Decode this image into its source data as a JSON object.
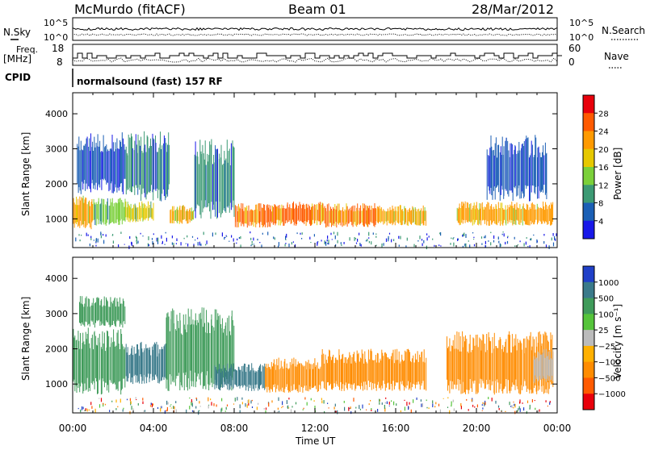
{
  "header": {
    "station": "McMurdo (fitACF)",
    "beam": "Beam 01",
    "date": "28/Mar/2012"
  },
  "strips": {
    "nsky_label": "N.Sky",
    "nsearch_label": "N.Search",
    "noise_ticks": [
      "10^5",
      "10^0"
    ],
    "freq_label_line1": "Freq.",
    "freq_label_line2": "[MHz]",
    "freq_ticks": [
      "18",
      "8"
    ],
    "nave_label": "Nave",
    "nave_ticks": [
      "60",
      "0"
    ],
    "cpid_label": "CPID",
    "cpid_text": "normalsound (fast) 157 RF"
  },
  "axes": {
    "ylabel": "Slant Range [km]",
    "xlabel": "Time UT",
    "xticks": [
      "00:00",
      "04:00",
      "08:00",
      "12:00",
      "16:00",
      "20:00",
      "00:00"
    ],
    "xrange_hours": [
      0,
      24
    ],
    "yrange_km": [
      180,
      4600
    ]
  },
  "power_colorbar": {
    "label": "Power [dB]",
    "ticks": [
      "28",
      "24",
      "20",
      "16",
      "12",
      "8",
      "4"
    ],
    "colors": [
      "#e8000b",
      "#ff5a00",
      "#ff9a00",
      "#e6c800",
      "#7bd03a",
      "#3c9a74",
      "#1b5fb5",
      "#1818e8"
    ]
  },
  "velocity_colorbar": {
    "label": "Velocity [m s⁻¹]",
    "ticks": [
      "1000",
      "500",
      "100",
      "25",
      "−25",
      "−100",
      "−500",
      "−1000"
    ],
    "colors": [
      "#2040c8",
      "#3a7a8a",
      "#3f9b5a",
      "#55c43a",
      "#bbbbbb",
      "#ffb000",
      "#ff8c00",
      "#ff5a00",
      "#e8000b"
    ]
  },
  "chart_data": {
    "type": "heatmap",
    "x_unit": "hours UT",
    "y_unit": "km",
    "ylim": [
      180,
      4600
    ],
    "xlim": [
      0,
      24
    ],
    "panels": [
      {
        "name": "power",
        "regions": [
          {
            "x": [
              0.0,
              1.0
            ],
            "y": [
              700,
              1700
            ],
            "value": 22
          },
          {
            "x": [
              0.2,
              2.6
            ],
            "y": [
              1700,
              3500
            ],
            "value": 6
          },
          {
            "x": [
              1.0,
              2.6
            ],
            "y": [
              800,
              1600
            ],
            "value": 12
          },
          {
            "x": [
              2.6,
              4.0
            ],
            "y": [
              900,
              1500
            ],
            "value": 18
          },
          {
            "x": [
              2.6,
              4.8
            ],
            "y": [
              1500,
              3500
            ],
            "value": 8
          },
          {
            "x": [
              4.8,
              6.0
            ],
            "y": [
              850,
              1400
            ],
            "value": 20
          },
          {
            "x": [
              6.0,
              8.0
            ],
            "y": [
              1000,
              3300
            ],
            "value": 9
          },
          {
            "x": [
              8.0,
              10.0
            ],
            "y": [
              750,
              1450
            ],
            "value": 26
          },
          {
            "x": [
              10.0,
              12.5
            ],
            "y": [
              800,
              1500
            ],
            "value": 27
          },
          {
            "x": [
              12.5,
              15.0
            ],
            "y": [
              750,
              1450
            ],
            "value": 25
          },
          {
            "x": [
              15.0,
              17.5
            ],
            "y": [
              800,
              1400
            ],
            "value": 20
          },
          {
            "x": [
              19.0,
              23.8
            ],
            "y": [
              800,
              1500
            ],
            "value": 21
          },
          {
            "x": [
              20.5,
              23.5
            ],
            "y": [
              1500,
              3400
            ],
            "value": 7
          }
        ]
      },
      {
        "name": "velocity",
        "regions": [
          {
            "x": [
              0.0,
              2.6
            ],
            "y": [
              700,
              2600
            ],
            "value": 300
          },
          {
            "x": [
              0.3,
              2.6
            ],
            "y": [
              2600,
              3500
            ],
            "value": 150
          },
          {
            "x": [
              2.6,
              4.6
            ],
            "y": [
              1000,
              2200
            ],
            "value": 800
          },
          {
            "x": [
              4.6,
              8.0
            ],
            "y": [
              800,
              3200
            ],
            "value": 300
          },
          {
            "x": [
              7.0,
              9.5
            ],
            "y": [
              800,
              1600
            ],
            "value": 900
          },
          {
            "x": [
              9.5,
              12.3
            ],
            "y": [
              750,
              1750
            ],
            "value": -300
          },
          {
            "x": [
              12.3,
              17.5
            ],
            "y": [
              800,
              2000
            ],
            "value": -300
          },
          {
            "x": [
              18.5,
              23.8
            ],
            "y": [
              700,
              2500
            ],
            "value": -300
          },
          {
            "x": [
              22.8,
              23.8
            ],
            "y": [
              1000,
              2000
            ],
            "value": 0
          }
        ]
      }
    ]
  }
}
